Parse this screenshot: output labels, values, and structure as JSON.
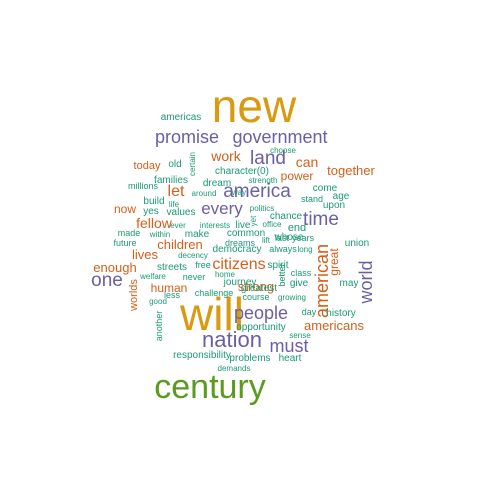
{
  "palette": {
    "gold": "#d99a0f",
    "purple": "#6a5fa5",
    "orange": "#d45f1a",
    "teal": "#1b9a74",
    "green": "#5a9a1f"
  },
  "words": [
    {
      "text": "new",
      "color": "gold"
    },
    {
      "text": "will",
      "color": "gold"
    },
    {
      "text": "century",
      "color": "green"
    },
    {
      "text": "promise",
      "color": "purple"
    },
    {
      "text": "government",
      "color": "purple"
    },
    {
      "text": "nation",
      "color": "purple"
    },
    {
      "text": "america",
      "color": "purple"
    },
    {
      "text": "every",
      "color": "purple"
    },
    {
      "text": "time",
      "color": "purple"
    },
    {
      "text": "land",
      "color": "purple"
    },
    {
      "text": "people",
      "color": "purple"
    },
    {
      "text": "must",
      "color": "purple"
    },
    {
      "text": "one",
      "color": "purple"
    },
    {
      "text": "world",
      "color": "purple"
    },
    {
      "text": "citizens",
      "color": "orange"
    },
    {
      "text": "american",
      "color": "orange"
    },
    {
      "text": "work",
      "color": "orange"
    },
    {
      "text": "can",
      "color": "orange"
    },
    {
      "text": "let",
      "color": "orange"
    },
    {
      "text": "fellow",
      "color": "orange"
    },
    {
      "text": "together",
      "color": "orange"
    },
    {
      "text": "children",
      "color": "orange"
    },
    {
      "text": "enough",
      "color": "orange"
    },
    {
      "text": "lives",
      "color": "orange"
    },
    {
      "text": "americans",
      "color": "orange"
    },
    {
      "text": "today",
      "color": "orange"
    },
    {
      "text": "now",
      "color": "orange"
    },
    {
      "text": "strong",
      "color": "orange"
    },
    {
      "text": "human",
      "color": "orange"
    },
    {
      "text": "power",
      "color": "orange"
    },
    {
      "text": "great",
      "color": "orange"
    },
    {
      "text": "worlds",
      "color": "orange"
    },
    {
      "text": "end",
      "color": "teal"
    },
    {
      "text": "americas",
      "color": "teal"
    },
    {
      "text": "old",
      "color": "teal"
    },
    {
      "text": "certain",
      "color": "teal"
    },
    {
      "text": "choose",
      "color": "teal"
    },
    {
      "text": "families",
      "color": "teal"
    },
    {
      "text": "character(0)",
      "color": "teal"
    },
    {
      "text": "millions",
      "color": "teal"
    },
    {
      "text": "dream",
      "color": "teal"
    },
    {
      "text": "strength",
      "color": "teal"
    },
    {
      "text": "come",
      "color": "teal"
    },
    {
      "text": "build",
      "color": "teal"
    },
    {
      "text": "around",
      "color": "teal"
    },
    {
      "text": "way",
      "color": "teal"
    },
    {
      "text": "stand",
      "color": "teal"
    },
    {
      "text": "age",
      "color": "teal"
    },
    {
      "text": "life",
      "color": "teal"
    },
    {
      "text": "upon",
      "color": "teal"
    },
    {
      "text": "yes",
      "color": "teal"
    },
    {
      "text": "values",
      "color": "teal"
    },
    {
      "text": "politics",
      "color": "teal"
    },
    {
      "text": "yet",
      "color": "teal"
    },
    {
      "text": "chance",
      "color": "teal"
    },
    {
      "text": "ever",
      "color": "teal"
    },
    {
      "text": "interests",
      "color": "teal"
    },
    {
      "text": "live",
      "color": "teal"
    },
    {
      "text": "office",
      "color": "teal"
    },
    {
      "text": "whose",
      "color": "teal"
    },
    {
      "text": "made",
      "color": "teal"
    },
    {
      "text": "within",
      "color": "teal"
    },
    {
      "text": "make",
      "color": "teal"
    },
    {
      "text": "common",
      "color": "teal"
    },
    {
      "text": "last",
      "color": "teal"
    },
    {
      "text": "years",
      "color": "teal"
    },
    {
      "text": "future",
      "color": "teal"
    },
    {
      "text": "dreams",
      "color": "teal"
    },
    {
      "text": "lift",
      "color": "teal"
    },
    {
      "text": "long",
      "color": "teal"
    },
    {
      "text": "union",
      "color": "teal"
    },
    {
      "text": "decency",
      "color": "teal"
    },
    {
      "text": "democracy",
      "color": "teal"
    },
    {
      "text": "always",
      "color": "teal"
    },
    {
      "text": "streets",
      "color": "teal"
    },
    {
      "text": "free",
      "color": "teal"
    },
    {
      "text": "spirit",
      "color": "teal"
    },
    {
      "text": "welfare",
      "color": "teal"
    },
    {
      "text": "never",
      "color": "teal"
    },
    {
      "text": "home",
      "color": "teal"
    },
    {
      "text": "better",
      "color": "teal"
    },
    {
      "text": "class",
      "color": "teal"
    },
    {
      "text": "may",
      "color": "teal"
    },
    {
      "text": "journey",
      "color": "teal"
    },
    {
      "text": "give",
      "color": "teal"
    },
    {
      "text": "good",
      "color": "teal"
    },
    {
      "text": "less",
      "color": "teal"
    },
    {
      "text": "greatest",
      "color": "teal"
    },
    {
      "text": "challenge",
      "color": "teal"
    },
    {
      "text": "course",
      "color": "teal"
    },
    {
      "text": "growing",
      "color": "teal"
    },
    {
      "text": "another",
      "color": "teal"
    },
    {
      "text": "day",
      "color": "teal"
    },
    {
      "text": "history",
      "color": "teal"
    },
    {
      "text": "opportunity",
      "color": "teal"
    },
    {
      "text": "sense",
      "color": "teal"
    },
    {
      "text": "responsibility",
      "color": "teal"
    },
    {
      "text": "problems",
      "color": "teal"
    },
    {
      "text": "heart",
      "color": "teal"
    },
    {
      "text": "demands",
      "color": "teal"
    }
  ]
}
